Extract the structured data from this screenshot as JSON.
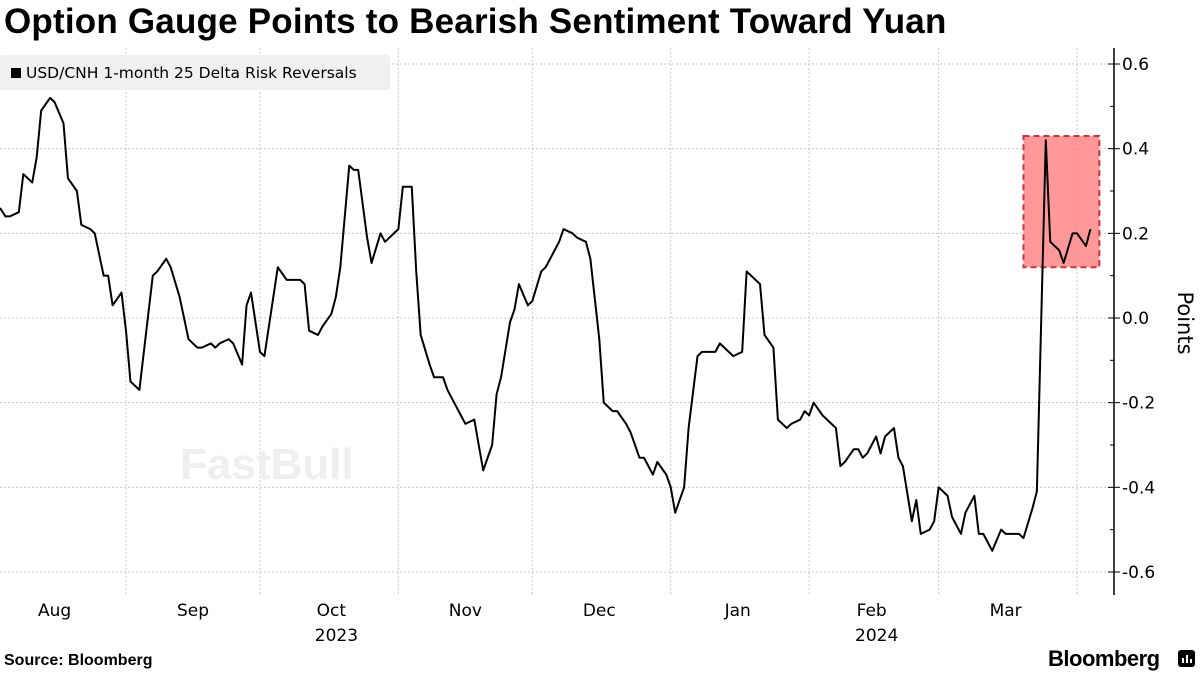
{
  "title": "Option Gauge Points to Bearish Sentiment Toward Yuan",
  "source": "Source: Bloomberg",
  "brand": "Bloomberg",
  "watermark": "FastBull",
  "chart_data": {
    "type": "line",
    "title": "Option Gauge Points to Bearish Sentiment Toward Yuan",
    "ylabel": "Points",
    "xlabel": "",
    "ylim": [
      -0.6,
      0.6
    ],
    "yticks": [
      "0.6",
      "0.4",
      "0.2",
      "0.0",
      "-0.2",
      "-0.4",
      "-0.6"
    ],
    "y_axis_side": "right",
    "xticks": [
      {
        "label": "Aug",
        "year": ""
      },
      {
        "label": "Sep",
        "year": ""
      },
      {
        "label": "Oct",
        "year": "2023"
      },
      {
        "label": "Nov",
        "year": ""
      },
      {
        "label": "Dec",
        "year": ""
      },
      {
        "label": "Jan",
        "year": ""
      },
      {
        "label": "Feb",
        "year": "2024"
      },
      {
        "label": "Mar",
        "year": ""
      }
    ],
    "grid": true,
    "legend_placement": "top-left",
    "line_color": "#000000",
    "highlight": {
      "x_range": [
        "2024-03-20",
        "2024-04-06"
      ],
      "y_range": [
        0.12,
        0.43
      ],
      "fill": "#ff8080",
      "border": "#d0323c"
    },
    "series": [
      {
        "name": "USD/CNH 1-month 25 Delta Risk Reversals",
        "points": [
          [
            "2023-08-03",
            0.26
          ],
          [
            "2023-08-05",
            0.24
          ],
          [
            "2023-08-06",
            0.24
          ],
          [
            "2023-08-08",
            0.25
          ],
          [
            "2023-08-09",
            0.34
          ],
          [
            "2023-08-11",
            0.32
          ],
          [
            "2023-08-12",
            0.38
          ],
          [
            "2023-08-13",
            0.49
          ],
          [
            "2023-08-15",
            0.52
          ],
          [
            "2023-08-16",
            0.51
          ],
          [
            "2023-08-18",
            0.46
          ],
          [
            "2023-08-19",
            0.33
          ],
          [
            "2023-08-21",
            0.3
          ],
          [
            "2023-08-22",
            0.22
          ],
          [
            "2023-08-24",
            0.21
          ],
          [
            "2023-08-25",
            0.2
          ],
          [
            "2023-08-27",
            0.1
          ],
          [
            "2023-08-28",
            0.1
          ],
          [
            "2023-08-29",
            0.03
          ],
          [
            "2023-08-31",
            0.06
          ],
          [
            "2023-09-01",
            -0.03
          ],
          [
            "2023-09-02",
            -0.15
          ],
          [
            "2023-09-04",
            -0.17
          ],
          [
            "2023-09-07",
            0.1
          ],
          [
            "2023-09-08",
            0.11
          ],
          [
            "2023-09-10",
            0.14
          ],
          [
            "2023-09-11",
            0.12
          ],
          [
            "2023-09-13",
            0.05
          ],
          [
            "2023-09-15",
            -0.05
          ],
          [
            "2023-09-17",
            -0.07
          ],
          [
            "2023-09-18",
            -0.07
          ],
          [
            "2023-09-20",
            -0.06
          ],
          [
            "2023-09-21",
            -0.07
          ],
          [
            "2023-09-22",
            -0.06
          ],
          [
            "2023-09-24",
            -0.05
          ],
          [
            "2023-09-25",
            -0.06
          ],
          [
            "2023-09-27",
            -0.11
          ],
          [
            "2023-09-28",
            0.03
          ],
          [
            "2023-09-29",
            0.06
          ],
          [
            "2023-10-01",
            -0.08
          ],
          [
            "2023-10-02",
            -0.09
          ],
          [
            "2023-10-04",
            0.05
          ],
          [
            "2023-10-05",
            0.12
          ],
          [
            "2023-10-07",
            0.09
          ],
          [
            "2023-10-08",
            0.09
          ],
          [
            "2023-10-10",
            0.09
          ],
          [
            "2023-10-11",
            0.08
          ],
          [
            "2023-10-12",
            -0.03
          ],
          [
            "2023-10-14",
            -0.04
          ],
          [
            "2023-10-15",
            -0.02
          ],
          [
            "2023-10-17",
            0.01
          ],
          [
            "2023-10-18",
            0.05
          ],
          [
            "2023-10-19",
            0.12
          ],
          [
            "2023-10-21",
            0.36
          ],
          [
            "2023-10-22",
            0.35
          ],
          [
            "2023-10-23",
            0.35
          ],
          [
            "2023-10-25",
            0.19
          ],
          [
            "2023-10-26",
            0.13
          ],
          [
            "2023-10-28",
            0.2
          ],
          [
            "2023-10-29",
            0.18
          ],
          [
            "2023-10-31",
            0.2
          ],
          [
            "2023-11-01",
            0.21
          ],
          [
            "2023-11-02",
            0.31
          ],
          [
            "2023-11-04",
            0.31
          ],
          [
            "2023-11-05",
            0.11
          ],
          [
            "2023-11-06",
            -0.04
          ],
          [
            "2023-11-08",
            -0.11
          ],
          [
            "2023-11-09",
            -0.14
          ],
          [
            "2023-11-11",
            -0.14
          ],
          [
            "2023-11-12",
            -0.17
          ],
          [
            "2023-11-13",
            -0.19
          ],
          [
            "2023-11-15",
            -0.23
          ],
          [
            "2023-11-16",
            -0.25
          ],
          [
            "2023-11-18",
            -0.24
          ],
          [
            "2023-11-19",
            -0.3
          ],
          [
            "2023-11-20",
            -0.36
          ],
          [
            "2023-11-22",
            -0.3
          ],
          [
            "2023-11-23",
            -0.18
          ],
          [
            "2023-11-24",
            -0.14
          ],
          [
            "2023-11-26",
            -0.01
          ],
          [
            "2023-11-27",
            0.02
          ],
          [
            "2023-11-28",
            0.08
          ],
          [
            "2023-11-30",
            0.03
          ],
          [
            "2023-12-01",
            0.04
          ],
          [
            "2023-12-03",
            0.11
          ],
          [
            "2023-12-04",
            0.12
          ],
          [
            "2023-12-06",
            0.16
          ],
          [
            "2023-12-07",
            0.18
          ],
          [
            "2023-12-08",
            0.21
          ],
          [
            "2023-12-10",
            0.2
          ],
          [
            "2023-12-11",
            0.19
          ],
          [
            "2023-12-13",
            0.18
          ],
          [
            "2023-12-14",
            0.14
          ],
          [
            "2023-12-16",
            -0.05
          ],
          [
            "2023-12-17",
            -0.2
          ],
          [
            "2023-12-19",
            -0.22
          ],
          [
            "2023-12-20",
            -0.22
          ],
          [
            "2023-12-22",
            -0.25
          ],
          [
            "2023-12-23",
            -0.27
          ],
          [
            "2023-12-25",
            -0.33
          ],
          [
            "2023-12-26",
            -0.33
          ],
          [
            "2023-12-28",
            -0.37
          ],
          [
            "2023-12-29",
            -0.34
          ],
          [
            "2023-12-31",
            -0.37
          ],
          [
            "2024-01-01",
            -0.4
          ],
          [
            "2024-01-02",
            -0.46
          ],
          [
            "2024-01-04",
            -0.4
          ],
          [
            "2024-01-05",
            -0.26
          ],
          [
            "2024-01-07",
            -0.09
          ],
          [
            "2024-01-08",
            -0.08
          ],
          [
            "2024-01-10",
            -0.08
          ],
          [
            "2024-01-11",
            -0.08
          ],
          [
            "2024-01-12",
            -0.06
          ],
          [
            "2024-01-14",
            -0.08
          ],
          [
            "2024-01-15",
            -0.09
          ],
          [
            "2024-01-17",
            -0.08
          ],
          [
            "2024-01-18",
            0.11
          ],
          [
            "2024-01-19",
            0.1
          ],
          [
            "2024-01-21",
            0.08
          ],
          [
            "2024-01-22",
            -0.04
          ],
          [
            "2024-01-24",
            -0.07
          ],
          [
            "2024-01-25",
            -0.24
          ],
          [
            "2024-01-27",
            -0.26
          ],
          [
            "2024-01-28",
            -0.25
          ],
          [
            "2024-01-30",
            -0.24
          ],
          [
            "2024-01-31",
            -0.22
          ],
          [
            "2024-02-01",
            -0.23
          ],
          [
            "2024-02-02",
            -0.2
          ],
          [
            "2024-02-04",
            -0.23
          ],
          [
            "2024-02-05",
            -0.24
          ],
          [
            "2024-02-07",
            -0.26
          ],
          [
            "2024-02-08",
            -0.35
          ],
          [
            "2024-02-09",
            -0.34
          ],
          [
            "2024-02-11",
            -0.31
          ],
          [
            "2024-02-12",
            -0.31
          ],
          [
            "2024-02-13",
            -0.33
          ],
          [
            "2024-02-14",
            -0.32
          ],
          [
            "2024-02-16",
            -0.28
          ],
          [
            "2024-02-17",
            -0.32
          ],
          [
            "2024-02-18",
            -0.28
          ],
          [
            "2024-02-20",
            -0.26
          ],
          [
            "2024-02-21",
            -0.33
          ],
          [
            "2024-02-22",
            -0.35
          ],
          [
            "2024-02-24",
            -0.48
          ],
          [
            "2024-02-25",
            -0.43
          ],
          [
            "2024-02-26",
            -0.51
          ],
          [
            "2024-02-28",
            -0.5
          ],
          [
            "2024-02-29",
            -0.48
          ],
          [
            "2024-03-01",
            -0.4
          ],
          [
            "2024-03-03",
            -0.42
          ],
          [
            "2024-03-04",
            -0.47
          ],
          [
            "2024-03-06",
            -0.51
          ],
          [
            "2024-03-07",
            -0.46
          ],
          [
            "2024-03-09",
            -0.42
          ],
          [
            "2024-03-10",
            -0.51
          ],
          [
            "2024-03-11",
            -0.51
          ],
          [
            "2024-03-13",
            -0.55
          ],
          [
            "2024-03-15",
            -0.5
          ],
          [
            "2024-03-16",
            -0.51
          ],
          [
            "2024-03-17",
            -0.51
          ],
          [
            "2024-03-19",
            -0.51
          ],
          [
            "2024-03-20",
            -0.52
          ],
          [
            "2024-03-22",
            -0.45
          ],
          [
            "2024-03-23",
            -0.41
          ],
          [
            "2024-03-25",
            0.42
          ],
          [
            "2024-03-26",
            0.18
          ],
          [
            "2024-03-28",
            0.16
          ],
          [
            "2024-03-29",
            0.13
          ],
          [
            "2024-03-31",
            0.2
          ],
          [
            "2024-04-01",
            0.2
          ],
          [
            "2024-04-03",
            0.17
          ],
          [
            "2024-04-04",
            0.21
          ]
        ]
      }
    ]
  }
}
